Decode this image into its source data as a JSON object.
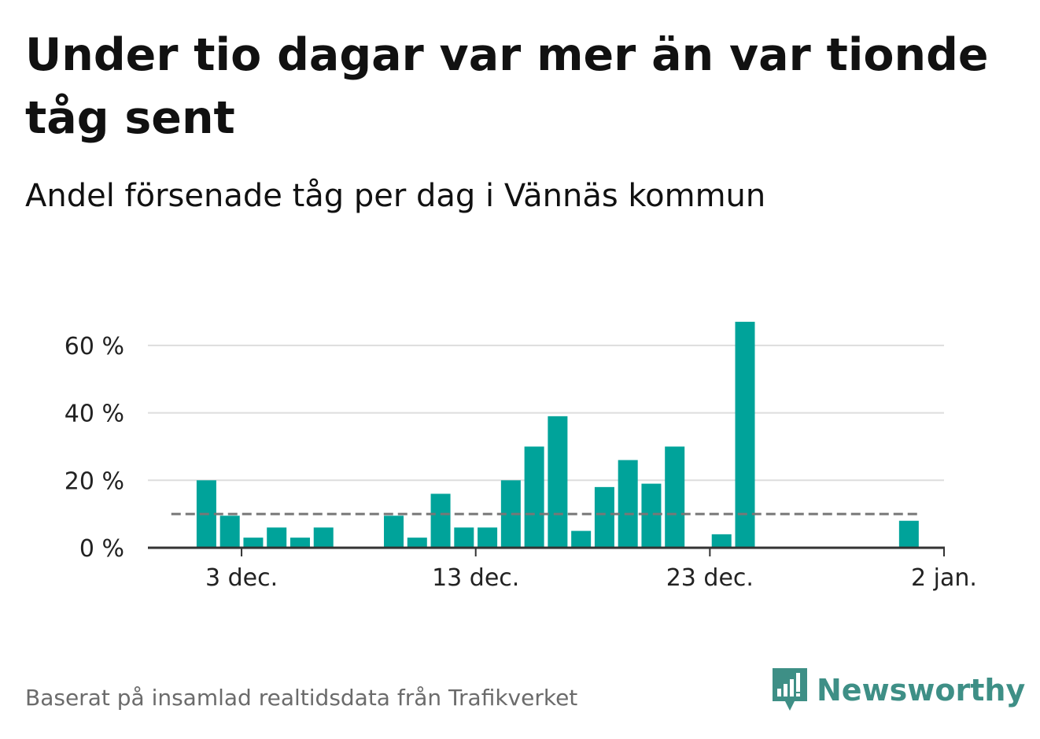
{
  "title": "Under tio dagar var mer än var tionde tåg sent",
  "subtitle": "Andel försenade tåg per dag i Vännäs kommun",
  "footer": "Baserat på insamlad realtidsdata från Trafikverket",
  "logo": {
    "name": "Newsworthy",
    "icon": "newsworthy-logo-icon"
  },
  "colors": {
    "bar": "#00a39a",
    "reference_line": "#777777",
    "grid": "#dddddd",
    "axis": "#333333"
  },
  "chart_data": {
    "type": "bar",
    "title": "Under tio dagar var mer än var tionde tåg sent",
    "subtitle": "Andel försenade tåg per dag i Vännäs kommun",
    "xlabel": "",
    "ylabel": "",
    "x_domain": [
      "2019-11-29",
      "2020-01-02"
    ],
    "x_ticks": [
      {
        "date": "2019-12-03",
        "label": "3 dec."
      },
      {
        "date": "2019-12-13",
        "label": "13 dec."
      },
      {
        "date": "2019-12-23",
        "label": "23 dec."
      },
      {
        "date": "2020-01-02",
        "label": "2 jan."
      }
    ],
    "y_ticks": [
      {
        "value": 0,
        "label": "0 %"
      },
      {
        "value": 20,
        "label": "20 %"
      },
      {
        "value": 40,
        "label": "40 %"
      },
      {
        "value": 60,
        "label": "60 %"
      }
    ],
    "ylim": [
      0,
      70
    ],
    "unit": "%",
    "grid": true,
    "reference_line": {
      "value": 10,
      "from": "2019-11-30",
      "to": "2020-01-01",
      "style": "dashed"
    },
    "bars": [
      {
        "date": "2019-12-01",
        "value": 20
      },
      {
        "date": "2019-12-02",
        "value": 9.5
      },
      {
        "date": "2019-12-03",
        "value": 3
      },
      {
        "date": "2019-12-04",
        "value": 6
      },
      {
        "date": "2019-12-05",
        "value": 3
      },
      {
        "date": "2019-12-06",
        "value": 6
      },
      {
        "date": "2019-12-09",
        "value": 9.5
      },
      {
        "date": "2019-12-10",
        "value": 3
      },
      {
        "date": "2019-12-11",
        "value": 16
      },
      {
        "date": "2019-12-12",
        "value": 6
      },
      {
        "date": "2019-12-13",
        "value": 6
      },
      {
        "date": "2019-12-14",
        "value": 20
      },
      {
        "date": "2019-12-15",
        "value": 30
      },
      {
        "date": "2019-12-16",
        "value": 39
      },
      {
        "date": "2019-12-17",
        "value": 5
      },
      {
        "date": "2019-12-18",
        "value": 18
      },
      {
        "date": "2019-12-19",
        "value": 26
      },
      {
        "date": "2019-12-20",
        "value": 19
      },
      {
        "date": "2019-12-21",
        "value": 30
      },
      {
        "date": "2019-12-23",
        "value": 4
      },
      {
        "date": "2019-12-24",
        "value": 67
      },
      {
        "date": "2019-12-31",
        "value": 8
      }
    ]
  }
}
